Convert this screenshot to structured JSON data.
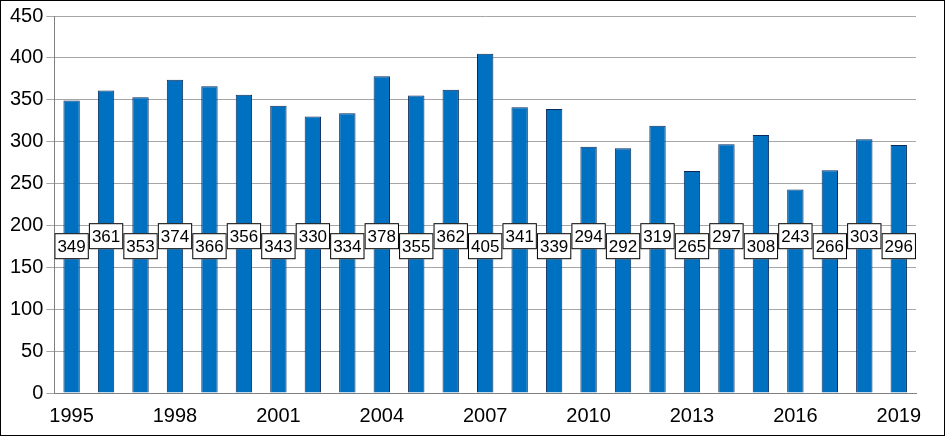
{
  "chart_data": {
    "type": "bar",
    "categories": [
      "1995",
      null,
      null,
      "1998",
      null,
      null,
      "2001",
      null,
      null,
      "2004",
      null,
      null,
      "2007",
      null,
      null,
      "2010",
      null,
      null,
      "2013",
      null,
      null,
      "2016",
      null,
      null,
      "2019"
    ],
    "values": [
      349,
      361,
      353,
      374,
      366,
      356,
      343,
      330,
      334,
      378,
      355,
      362,
      405,
      341,
      339,
      294,
      292,
      319,
      265,
      297,
      308,
      243,
      266,
      303,
      296
    ],
    "color": "#0070c0",
    "ylim": [
      0,
      450
    ],
    "yticks": [
      0,
      50,
      100,
      150,
      200,
      250,
      300,
      350,
      400,
      450
    ],
    "grid": true,
    "data_labels": true
  }
}
